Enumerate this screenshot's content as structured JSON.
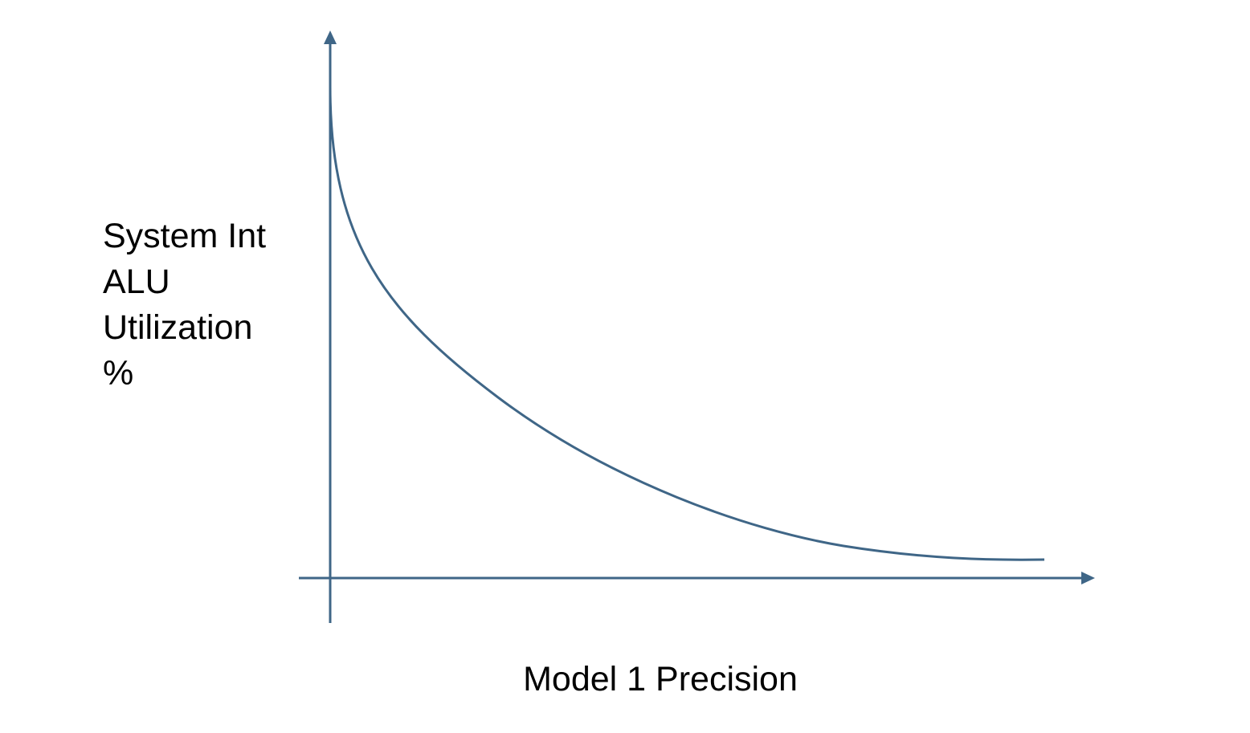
{
  "diagram": {
    "type": "curve",
    "description_shape": "decreasing-convex",
    "y_axis": {
      "label_lines": [
        "System Int",
        "ALU",
        "Utilization",
        "%"
      ]
    },
    "x_axis": {
      "label": "Model 1 Precision"
    },
    "colors": {
      "axis": "#3f6687",
      "curve": "#3f6687",
      "text": "#000000"
    }
  }
}
